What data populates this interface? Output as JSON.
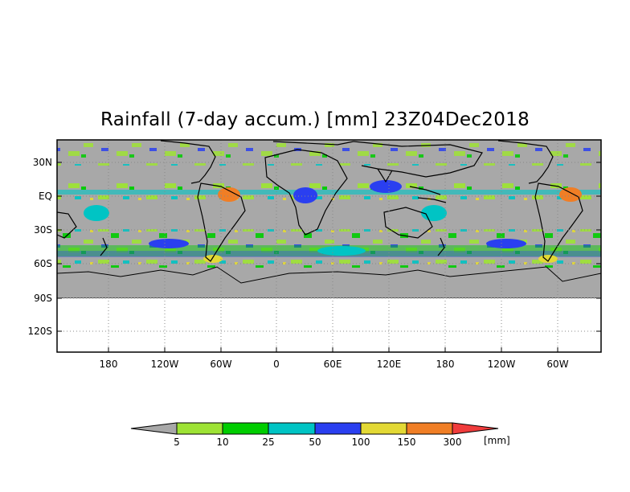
{
  "title": "Rainfall (7-day accum.) [mm] 23Z04Dec2018",
  "y_axis": {
    "ticks": [
      "30N",
      "EQ",
      "30S",
      "60S",
      "90S",
      "120S"
    ]
  },
  "x_axis": {
    "ticks": [
      "180",
      "120W",
      "60W",
      "0",
      "60E",
      "120E",
      "180",
      "120W",
      "60W"
    ]
  },
  "colorbar": {
    "labels": [
      "5",
      "10",
      "25",
      "50",
      "100",
      "150",
      "300"
    ],
    "unit": "[mm]",
    "colors": [
      "#a8a8a8",
      "#9ee335",
      "#00cd00",
      "#00c4c4",
      "#2a3ff0",
      "#e3d935",
      "#f07e25",
      "#f03c3c"
    ]
  },
  "map": {
    "no_data_color": "#a8a8a8",
    "land_outline_color": "#000000",
    "grid": "dotted"
  }
}
